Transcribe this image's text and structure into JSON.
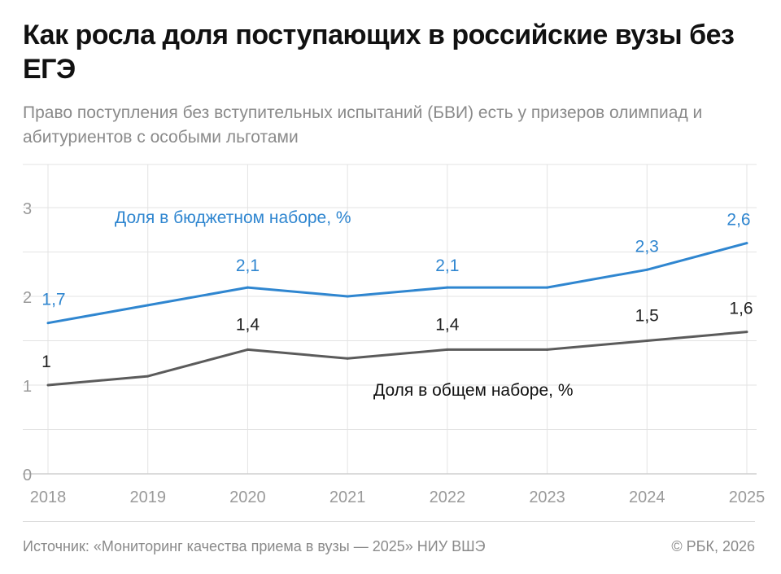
{
  "header": {
    "title": "Как росла доля поступающих в российские вузы без ЕГЭ",
    "subtitle": "Право поступления без вступительных испытаний (БВИ) есть у призеров олимпиад и абитуриентов с особыми льготами"
  },
  "footer": {
    "source": "Источник: «Мониторинг качества приема в вузы — 2025» НИУ ВШЭ",
    "copyright": "© РБК, 2026"
  },
  "chart_data": {
    "type": "line",
    "categories": [
      "2018",
      "2019",
      "2020",
      "2021",
      "2022",
      "2023",
      "2024",
      "2025"
    ],
    "series": [
      {
        "name": "Доля в бюджетном наборе, %",
        "values": [
          1.7,
          1.9,
          2.1,
          2.0,
          2.1,
          2.1,
          2.3,
          2.6
        ],
        "data_labels": [
          "1,7",
          "",
          "2,1",
          "",
          "2,1",
          "",
          "2,3",
          "2,6"
        ],
        "color": "#2f86d0"
      },
      {
        "name": "Доля в общем наборе, %",
        "values": [
          1.0,
          1.1,
          1.4,
          1.3,
          1.4,
          1.4,
          1.5,
          1.6
        ],
        "data_labels": [
          "1",
          "",
          "1,4",
          "",
          "1,4",
          "",
          "1,5",
          "1,6"
        ],
        "color": "#5b5b5b"
      }
    ],
    "ylim": [
      0,
      3.4
    ],
    "yticks": [
      "0",
      "1",
      "2",
      "3"
    ],
    "xlabel": "",
    "ylabel": "",
    "grid": true
  }
}
